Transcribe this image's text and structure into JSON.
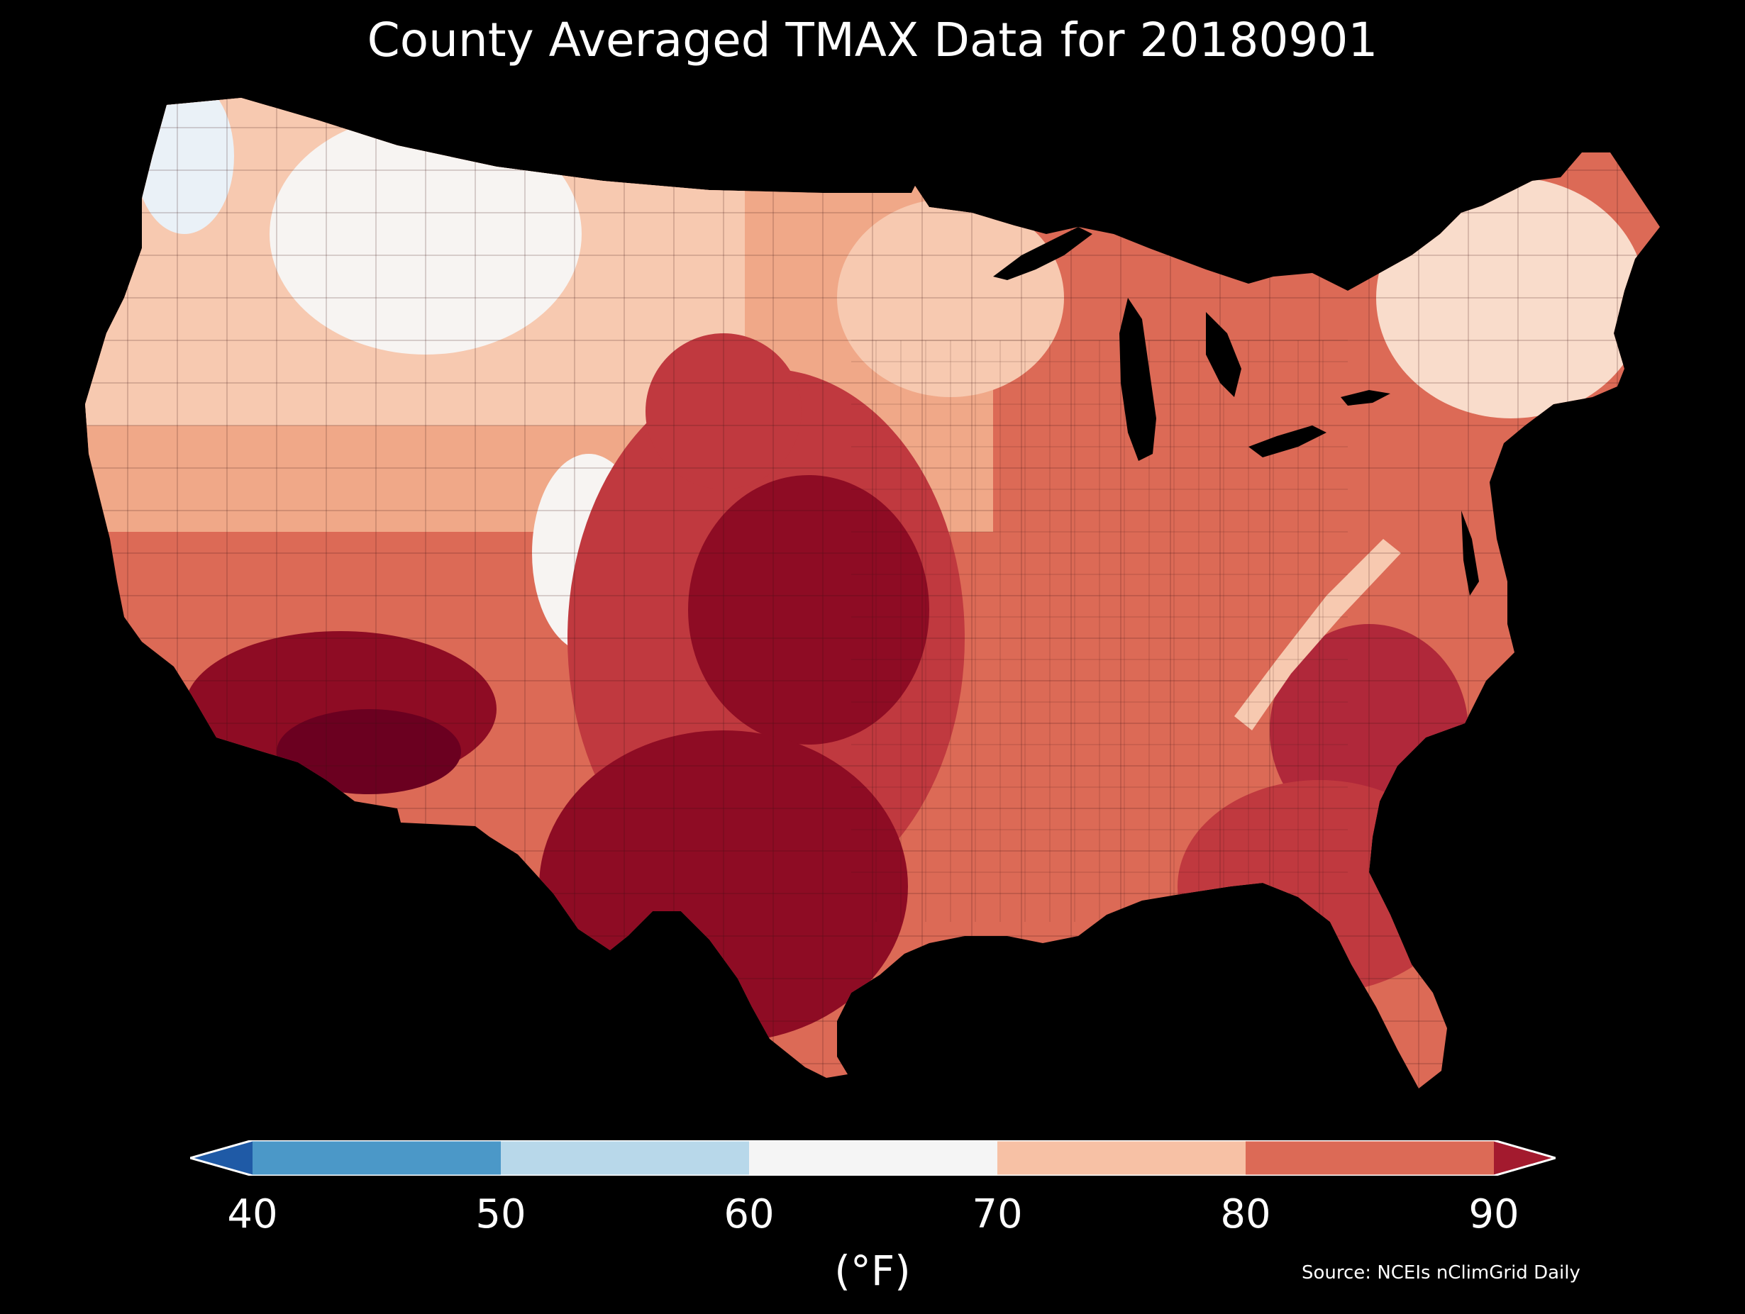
{
  "title": "County Averaged TMAX Data for 20180901",
  "colorbar": {
    "label": "(°F)",
    "ticks": [
      "40",
      "50",
      "60",
      "70",
      "80",
      "90"
    ],
    "bins": [
      {
        "range": "<40",
        "color": "#1f5aa6"
      },
      {
        "range": "40-50",
        "color": "#4b98c8"
      },
      {
        "range": "50-60",
        "color": "#b8d8ea"
      },
      {
        "range": "60-70",
        "color": "#f5f5f5"
      },
      {
        "range": "70-80",
        "color": "#f7c1a5"
      },
      {
        "range": "80-90",
        "color": "#dc6a56"
      },
      {
        "range": ">90",
        "color": "#a31a2e"
      }
    ]
  },
  "source": "Source: NCEIs nClimGrid Daily",
  "map": {
    "region": "Contiguous United States",
    "variable": "TMAX",
    "date": "20180901",
    "colors": {
      "background": "#000000",
      "water": "#000000",
      "coolest": "#eaf1f7",
      "cool": "#f7f4f2",
      "mild": "#f9dccb",
      "warm": "#f0a888",
      "hot": "#dc6a56",
      "hotter": "#c0393f",
      "hottest": "#8e0c24",
      "extreme": "#6b0020"
    }
  }
}
